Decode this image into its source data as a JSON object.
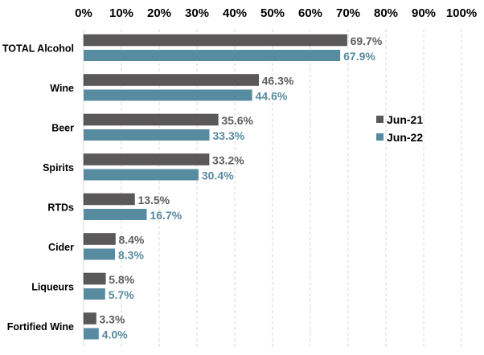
{
  "chart_data": {
    "type": "bar",
    "orientation": "horizontal",
    "categories": [
      "TOTAL Alcohol",
      "Wine",
      "Beer",
      "Spirits",
      "RTDs",
      "Cider",
      "Liqueurs",
      "Fortified Wine"
    ],
    "series": [
      {
        "name": "Jun-21",
        "color": "#5a5858",
        "label_color": "#5d5d5d",
        "values": [
          69.7,
          46.3,
          35.6,
          33.2,
          13.5,
          8.4,
          5.8,
          3.3
        ],
        "labels": [
          "69.7%",
          "46.3%",
          "35.6%",
          "33.2%",
          "13.5%",
          "8.4%",
          "5.8%",
          "3.3%"
        ]
      },
      {
        "name": "Jun-22",
        "color": "#578ba0",
        "label_color": "#578ba0",
        "values": [
          67.9,
          44.6,
          33.3,
          30.4,
          16.7,
          8.3,
          5.7,
          4.0
        ],
        "labels": [
          "67.9%",
          "44.6%",
          "33.3%",
          "30.4%",
          "16.7%",
          "8.3%",
          "5.7%",
          "4.0%"
        ]
      }
    ],
    "xlim": [
      0,
      100
    ],
    "x_ticks": [
      "0%",
      "10%",
      "20%",
      "30%",
      "40%",
      "50%",
      "60%",
      "70%",
      "80%",
      "90%",
      "100%"
    ],
    "x_axis_position": "top",
    "grid": "vertical dashed",
    "legend_position": "right",
    "title": "",
    "xlabel": "",
    "ylabel": ""
  }
}
